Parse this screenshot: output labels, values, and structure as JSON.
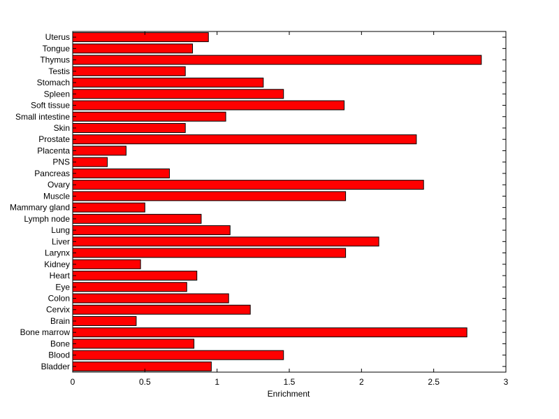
{
  "chart_data": {
    "type": "bar",
    "orientation": "horizontal",
    "title": "",
    "xlabel": "Enrichment",
    "ylabel": "",
    "xlim": [
      0,
      3
    ],
    "xticks": [
      "0",
      "0.5",
      "1",
      "1.5",
      "2",
      "2.5",
      "3"
    ],
    "grid": false,
    "bar_color": "#ff0000",
    "edge_color": "#000000",
    "categories": [
      "Uterus",
      "Tongue",
      "Thymus",
      "Testis",
      "Stomach",
      "Spleen",
      "Soft tissue",
      "Small intestine",
      "Skin",
      "Prostate",
      "Placenta",
      "PNS",
      "Pancreas",
      "Ovary",
      "Muscle",
      "Mammary gland",
      "Lymph node",
      "Lung",
      "Liver",
      "Larynx",
      "Kidney",
      "Heart",
      "Eye",
      "Colon",
      "Cervix",
      "Brain",
      "Bone marrow",
      "Bone",
      "Blood",
      "Bladder"
    ],
    "values": [
      0.94,
      0.83,
      2.83,
      0.78,
      1.32,
      1.46,
      1.88,
      1.06,
      0.78,
      2.38,
      0.37,
      0.24,
      0.67,
      2.43,
      1.89,
      0.5,
      0.89,
      1.09,
      2.12,
      1.89,
      0.47,
      0.86,
      0.79,
      1.08,
      1.23,
      0.44,
      2.73,
      0.84,
      1.46,
      0.96
    ]
  }
}
